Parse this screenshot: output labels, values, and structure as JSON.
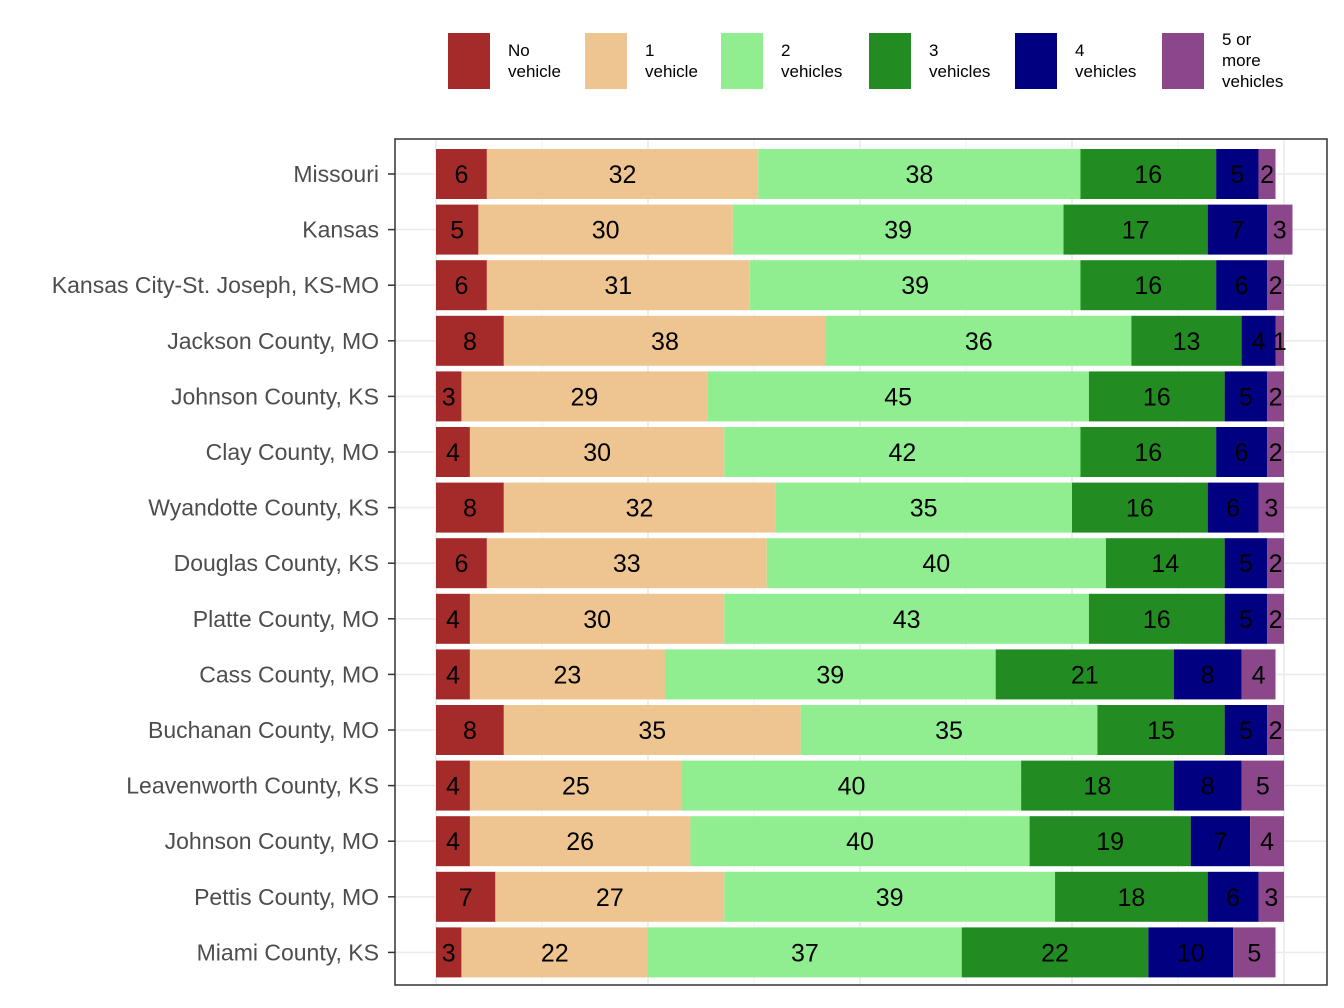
{
  "chart_data": {
    "type": "bar",
    "orientation": "horizontal",
    "stacked": true,
    "percent": true,
    "title": "",
    "xlabel": "",
    "ylabel": "",
    "xlim": [
      0,
      100
    ],
    "grid": true,
    "legend_position": "top",
    "categories": [
      "Missouri",
      "Kansas",
      "Kansas City-St. Joseph, KS-MO",
      "Jackson County, MO",
      "Johnson County, KS",
      "Clay County, MO",
      "Wyandotte County, KS",
      "Douglas County, KS",
      "Platte County, MO",
      "Cass County, MO",
      "Buchanan County, MO",
      "Leavenworth County, KS",
      "Johnson County, MO",
      "Pettis County, MO",
      "Miami County, KS"
    ],
    "series": [
      {
        "name": "No\nvehicle",
        "color": "#A52A2A",
        "values": [
          6,
          5,
          6,
          8,
          3,
          4,
          8,
          6,
          4,
          4,
          8,
          4,
          4,
          7,
          3
        ]
      },
      {
        "name": "1\nvehicle",
        "color": "#EEC591",
        "values": [
          32,
          30,
          31,
          38,
          29,
          30,
          32,
          33,
          30,
          23,
          35,
          25,
          26,
          27,
          22
        ]
      },
      {
        "name": "2\nvehicles",
        "color": "#90EE90",
        "values": [
          38,
          39,
          39,
          36,
          45,
          42,
          35,
          40,
          43,
          39,
          35,
          40,
          40,
          39,
          37
        ]
      },
      {
        "name": "3\nvehicles",
        "color": "#228B22",
        "values": [
          16,
          17,
          16,
          13,
          16,
          16,
          16,
          14,
          16,
          21,
          15,
          18,
          19,
          18,
          22
        ]
      },
      {
        "name": "4\nvehicles",
        "color": "#000080",
        "values": [
          5,
          7,
          6,
          4,
          5,
          6,
          6,
          5,
          5,
          8,
          5,
          8,
          7,
          6,
          10
        ]
      },
      {
        "name": "5 or\nmore\nvehicles",
        "color": "#8B4789",
        "values": [
          2,
          3,
          2,
          1,
          2,
          2,
          3,
          2,
          2,
          4,
          2,
          5,
          4,
          3,
          5
        ]
      }
    ]
  }
}
